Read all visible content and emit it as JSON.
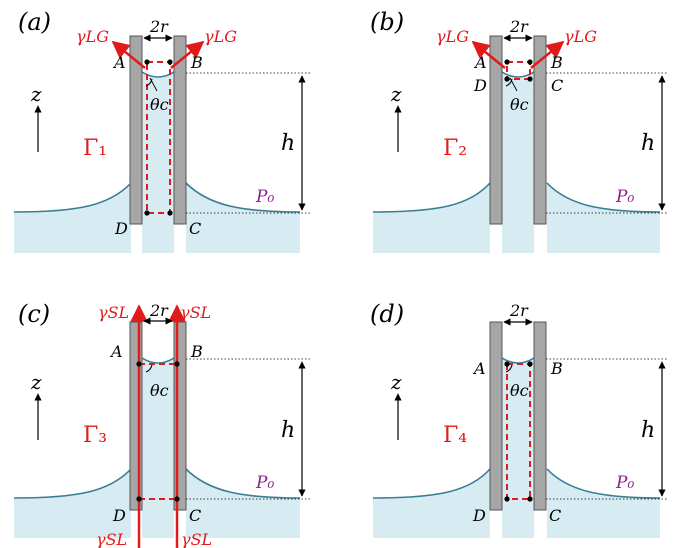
{
  "colors": {
    "liquid": "#d6ecf2",
    "meniscus": "#3a7d93",
    "wall_fill": "#a6a6a6",
    "wall_stroke": "#555555",
    "red": "#e11b1b",
    "purple": "#8a1f8a",
    "black": "#000000"
  },
  "symbols": {
    "width": "2r",
    "z": "z",
    "h": "h",
    "P0": "P₀",
    "theta": "θc"
  },
  "point_labels": {
    "A": "A",
    "B": "B",
    "C": "C",
    "D": "D"
  },
  "panels": [
    {
      "id": "a",
      "label": "(a)",
      "contour": "Γ₁",
      "forces": {
        "top": "γLG"
      }
    },
    {
      "id": "b",
      "label": "(b)",
      "contour": "Γ₂",
      "forces": {
        "top": "γLG"
      }
    },
    {
      "id": "c",
      "label": "(c)",
      "contour": "Γ₃",
      "forces": {
        "top": "γSL",
        "bottom": "γSL"
      }
    },
    {
      "id": "d",
      "label": "(d)",
      "contour": "Γ₄",
      "forces": {}
    }
  ]
}
